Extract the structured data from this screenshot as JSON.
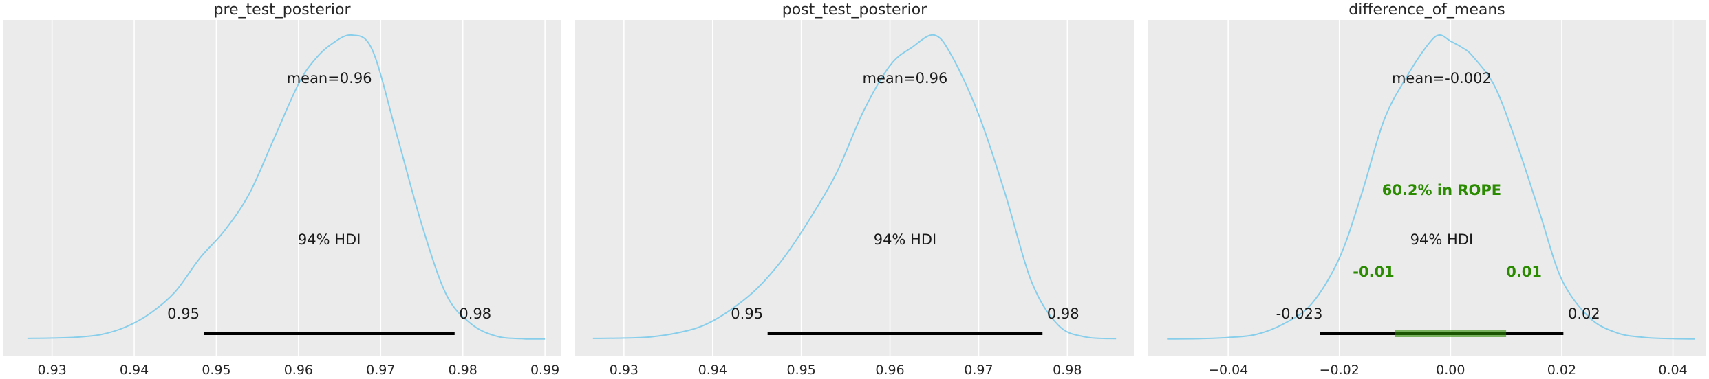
{
  "chart_data": [
    {
      "type": "line",
      "title": "pre_test_posterior",
      "xlim": [
        0.924,
        0.992
      ],
      "xticks": [
        0.93,
        0.94,
        0.95,
        0.96,
        0.97,
        0.98,
        0.99
      ],
      "xtick_labels": [
        "0.93",
        "0.94",
        "0.95",
        "0.96",
        "0.97",
        "0.98",
        "0.99"
      ],
      "grid": true,
      "color": "#87CEEB",
      "kde": {
        "x": [
          0.927,
          0.93,
          0.933,
          0.936,
          0.939,
          0.942,
          0.945,
          0.948,
          0.951,
          0.954,
          0.957,
          0.96,
          0.962,
          0.964,
          0.9665,
          0.969,
          0.972,
          0.975,
          0.978,
          0.981,
          0.984,
          0.987,
          0.99
        ],
        "y": [
          0.007,
          0.008,
          0.011,
          0.02,
          0.045,
          0.09,
          0.16,
          0.27,
          0.36,
          0.48,
          0.66,
          0.84,
          0.92,
          0.97,
          1.0,
          0.95,
          0.67,
          0.38,
          0.15,
          0.055,
          0.015,
          0.006,
          0.005
        ]
      },
      "mean_label": "mean=0.96",
      "hdi_label": "94% HDI",
      "hdi": [
        0.9485,
        0.979
      ],
      "hdi_low_label": "0.95",
      "hdi_high_label": "0.98"
    },
    {
      "type": "line",
      "title": "post_test_posterior",
      "xlim": [
        0.9245,
        0.9875
      ],
      "xticks": [
        0.93,
        0.94,
        0.95,
        0.96,
        0.97,
        0.98
      ],
      "xtick_labels": [
        "0.93",
        "0.94",
        "0.95",
        "0.96",
        "0.97",
        "0.98"
      ],
      "grid": true,
      "color": "#87CEEB",
      "kde": {
        "x": [
          0.9265,
          0.93,
          0.933,
          0.936,
          0.939,
          0.942,
          0.945,
          0.948,
          0.951,
          0.954,
          0.957,
          0.96,
          0.9625,
          0.965,
          0.967,
          0.97,
          0.973,
          0.976,
          0.979,
          0.982,
          0.9855
        ],
        "y": [
          0.007,
          0.008,
          0.012,
          0.025,
          0.05,
          0.1,
          0.17,
          0.27,
          0.4,
          0.55,
          0.75,
          0.9,
          0.96,
          1.0,
          0.93,
          0.74,
          0.48,
          0.19,
          0.05,
          0.012,
          0.006
        ]
      },
      "mean_label": "mean=0.96",
      "hdi_label": "94% HDI",
      "hdi": [
        0.9462,
        0.9772
      ],
      "hdi_low_label": "0.95",
      "hdi_high_label": "0.98"
    },
    {
      "type": "line",
      "title": "difference_of_means",
      "xlim": [
        -0.0545,
        0.046
      ],
      "xticks": [
        -0.04,
        -0.02,
        0.0,
        0.02,
        0.04
      ],
      "xtick_labels": [
        "−0.04",
        "−0.02",
        "0.00",
        "0.02",
        "0.04"
      ],
      "grid": true,
      "color": "#87CEEB",
      "kde": {
        "x": [
          -0.051,
          -0.045,
          -0.04,
          -0.035,
          -0.03,
          -0.025,
          -0.02,
          -0.016,
          -0.012,
          -0.008,
          -0.004,
          -0.002,
          0.0,
          0.002,
          0.004,
          0.008,
          0.012,
          0.016,
          0.02,
          0.025,
          0.03,
          0.035,
          0.04,
          0.044
        ],
        "y": [
          0.005,
          0.006,
          0.01,
          0.02,
          0.055,
          0.12,
          0.27,
          0.48,
          0.72,
          0.86,
          0.97,
          1.0,
          0.98,
          0.96,
          0.93,
          0.83,
          0.64,
          0.42,
          0.2,
          0.075,
          0.025,
          0.01,
          0.006,
          0.005
        ]
      },
      "mean_label": "mean=-0.002",
      "hdi_label": "94% HDI",
      "hdi": [
        -0.0235,
        0.0203
      ],
      "hdi_low_label": "-0.023",
      "hdi_high_label": "0.02",
      "rope": [
        -0.01,
        0.01
      ],
      "rope_color": "#2a8a00",
      "rope_label": "60.2% in ROPE",
      "rope_low_label": "-0.01",
      "rope_high_label": "0.01"
    }
  ]
}
